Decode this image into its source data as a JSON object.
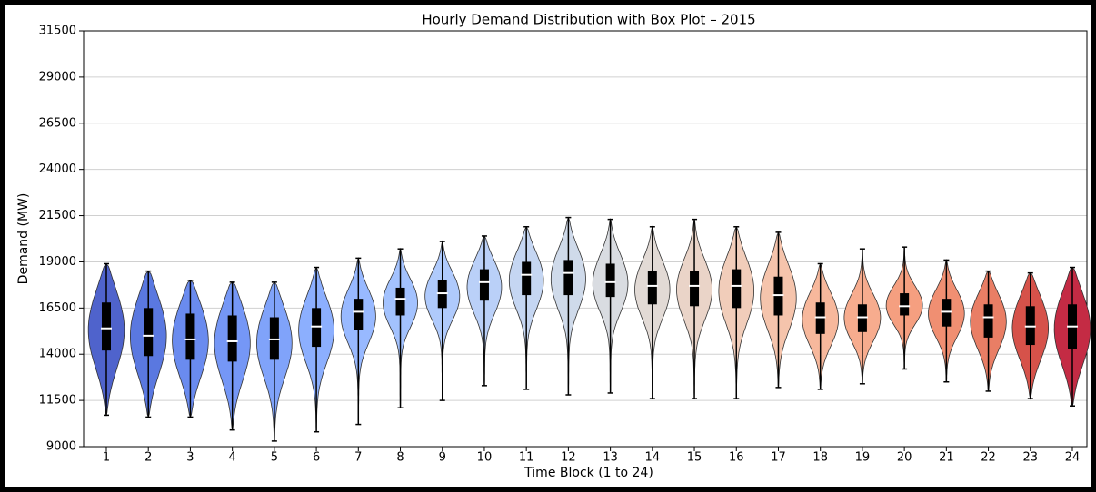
{
  "chart_data": {
    "type": "violin",
    "title": "Hourly Demand Distribution with Box Plot – 2015",
    "x_label": "Time Block (1 to 24)",
    "y_label": "Demand (MW)",
    "categories": [
      "1",
      "2",
      "3",
      "4",
      "5",
      "6",
      "7",
      "8",
      "9",
      "10",
      "11",
      "12",
      "13",
      "14",
      "15",
      "16",
      "17",
      "18",
      "19",
      "20",
      "21",
      "22",
      "23",
      "24"
    ],
    "min": [
      10700,
      10600,
      10600,
      9900,
      9300,
      9800,
      10200,
      11100,
      11500,
      12300,
      12100,
      11800,
      11900,
      11600,
      11600,
      11600,
      12200,
      12100,
      12400,
      13200,
      12500,
      12000,
      11600,
      11200
    ],
    "q1": [
      14200,
      13900,
      13700,
      13600,
      13700,
      14400,
      15300,
      16100,
      16500,
      16900,
      17200,
      17200,
      17100,
      16700,
      16600,
      16500,
      16100,
      15100,
      15200,
      16100,
      15500,
      14900,
      14500,
      14300
    ],
    "median": [
      15400,
      15000,
      14800,
      14700,
      14800,
      15500,
      16300,
      17000,
      17300,
      17900,
      18300,
      18400,
      17900,
      17700,
      17700,
      17700,
      17200,
      16000,
      16000,
      16600,
      16300,
      16000,
      15500,
      15500
    ],
    "q3": [
      16800,
      16500,
      16200,
      16100,
      16000,
      16500,
      17000,
      17600,
      18000,
      18600,
      19000,
      19100,
      18900,
      18500,
      18500,
      18600,
      18200,
      16800,
      16700,
      17300,
      17000,
      16700,
      16600,
      16700
    ],
    "max": [
      18900,
      18500,
      18000,
      17900,
      17900,
      18700,
      19200,
      19700,
      20100,
      20400,
      20900,
      21400,
      21300,
      20900,
      21300,
      20900,
      20600,
      18900,
      19700,
      19800,
      19100,
      18500,
      18400,
      18700
    ],
    "colors": [
      "#4f63cc",
      "#5a78e0",
      "#6a8bef",
      "#7597f6",
      "#80a3fa",
      "#8caffe",
      "#98b9ff",
      "#a3c2fe",
      "#afcafc",
      "#bad0f8",
      "#c5d6f2",
      "#cfdaea",
      "#d9dce1",
      "#e2dad5",
      "#ead4c8",
      "#f1cdba",
      "#f5c4ac",
      "#f7b89c",
      "#f7ac8e",
      "#f59f80",
      "#f08f72",
      "#e97e65",
      "#d6524a",
      "#c42b44"
    ],
    "ylim": [
      9000,
      31500
    ],
    "yticks": [
      9000,
      11500,
      14000,
      16500,
      19000,
      21500,
      24000,
      26500,
      29000,
      31500
    ],
    "grid": true
  }
}
